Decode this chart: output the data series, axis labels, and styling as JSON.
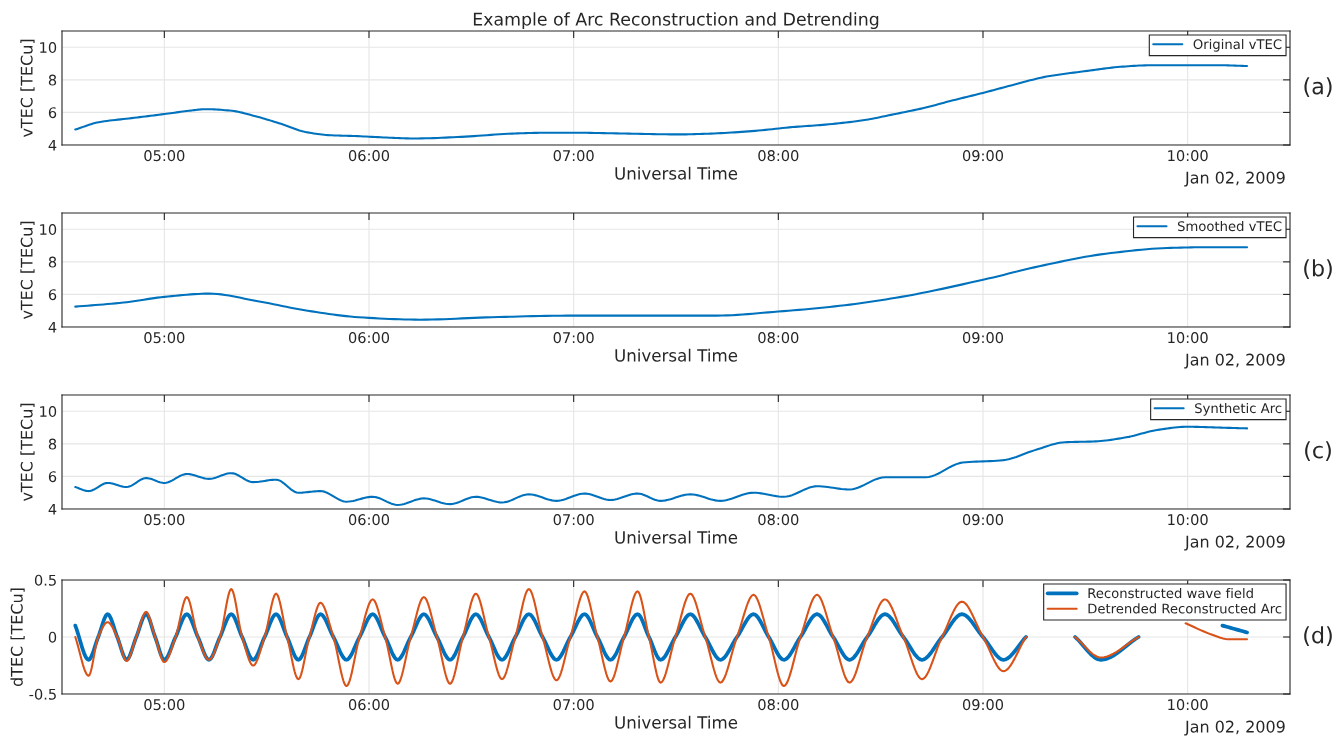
{
  "chart_data": [
    {
      "type": "line",
      "title": "Example of Arc Reconstruction and Detrending",
      "xlabel": "Universal Time",
      "ylabel": "vTEC [TECu]",
      "xlim": [
        4.5,
        10.5
      ],
      "ylim": [
        4,
        11
      ],
      "yticks": [
        4,
        6,
        8,
        10
      ],
      "xticks": [
        {
          "value": 5,
          "label": "05:00"
        },
        {
          "value": 6,
          "label": "06:00"
        },
        {
          "value": 7,
          "label": "07:00"
        },
        {
          "value": 8,
          "label": "08:00"
        },
        {
          "value": 9,
          "label": "09:00"
        },
        {
          "value": 10,
          "label": "10:00"
        }
      ],
      "grid": true,
      "legend": "top right",
      "annotations": [
        "Jan 02, 2009",
        "(a)"
      ],
      "series": [
        {
          "name": "Original vTEC",
          "color": "#0072bd",
          "x": [
            4.565,
            4.68,
            4.84,
            5.0,
            5.12,
            5.2,
            5.33,
            5.45,
            5.57,
            5.69,
            5.81,
            5.93,
            6.1,
            6.22,
            6.45,
            6.7,
            6.86,
            7.02,
            7.27,
            7.51,
            7.67,
            7.87,
            8.07,
            8.23,
            8.43,
            8.55,
            8.72,
            8.84,
            9.0,
            9.15,
            9.31,
            9.51,
            9.67,
            9.83,
            9.99,
            10.15,
            10.29
          ],
          "values": [
            4.95,
            5.4,
            5.65,
            5.9,
            6.1,
            6.2,
            6.1,
            5.75,
            5.3,
            4.8,
            4.6,
            4.55,
            4.45,
            4.4,
            4.5,
            4.7,
            4.75,
            4.75,
            4.7,
            4.65,
            4.7,
            4.85,
            5.1,
            5.25,
            5.55,
            5.85,
            6.3,
            6.7,
            7.2,
            7.7,
            8.2,
            8.55,
            8.8,
            8.9,
            8.9,
            8.9,
            8.85
          ]
        }
      ]
    },
    {
      "type": "line",
      "xlabel": "Universal Time",
      "ylabel": "vTEC [TECu]",
      "xlim": [
        4.5,
        10.5
      ],
      "ylim": [
        4,
        11
      ],
      "yticks": [
        4,
        6,
        8,
        10
      ],
      "xticks": [
        {
          "value": 5,
          "label": "05:00"
        },
        {
          "value": 6,
          "label": "06:00"
        },
        {
          "value": 7,
          "label": "07:00"
        },
        {
          "value": 8,
          "label": "08:00"
        },
        {
          "value": 9,
          "label": "09:00"
        },
        {
          "value": 10,
          "label": "10:00"
        }
      ],
      "grid": true,
      "legend": "top right",
      "annotations": [
        "Jan 02, 2009",
        "(b)"
      ],
      "series": [
        {
          "name": "Smoothed vTEC",
          "color": "#0072bd",
          "x": [
            4.565,
            4.8,
            5.0,
            5.22,
            5.45,
            5.7,
            5.95,
            6.25,
            6.6,
            7.0,
            7.4,
            7.7,
            8.0,
            8.3,
            8.6,
            9.0,
            9.3,
            9.6,
            9.9,
            10.1,
            10.29
          ],
          "values": [
            5.25,
            5.5,
            5.85,
            6.05,
            5.6,
            5.0,
            4.6,
            4.45,
            4.6,
            4.7,
            4.7,
            4.7,
            4.95,
            5.3,
            5.85,
            6.9,
            7.8,
            8.5,
            8.85,
            8.9,
            8.9
          ]
        }
      ]
    },
    {
      "type": "line",
      "xlabel": "Universal Time",
      "ylabel": "vTEC [TECu]",
      "xlim": [
        4.5,
        10.5
      ],
      "ylim": [
        4,
        11
      ],
      "yticks": [
        4,
        6,
        8,
        10
      ],
      "xticks": [
        {
          "value": 5,
          "label": "05:00"
        },
        {
          "value": 6,
          "label": "06:00"
        },
        {
          "value": 7,
          "label": "07:00"
        },
        {
          "value": 8,
          "label": "08:00"
        },
        {
          "value": 9,
          "label": "09:00"
        },
        {
          "value": 10,
          "label": "10:00"
        }
      ],
      "grid": true,
      "legend": "top right",
      "annotations": [
        "Jan 02, 2009",
        "(c)"
      ],
      "series": [
        {
          "name": "Synthetic Arc",
          "color": "#0072bd",
          "x": [
            4.565,
            4.63,
            4.723,
            4.816,
            4.911,
            5.0,
            5.11,
            5.218,
            5.327,
            5.434,
            5.546,
            5.655,
            5.763,
            5.89,
            6.018,
            6.14,
            6.268,
            6.396,
            6.522,
            6.65,
            6.781,
            6.916,
            7.053,
            7.18,
            7.312,
            7.425,
            7.57,
            7.717,
            7.879,
            8.027,
            8.189,
            8.348,
            8.521,
            8.72,
            8.9,
            9.1,
            9.25,
            9.4,
            9.55,
            9.7,
            9.85,
            10.0,
            10.15,
            10.29
          ],
          "values": [
            5.35,
            5.1,
            5.6,
            5.35,
            5.9,
            5.6,
            6.15,
            5.85,
            6.2,
            5.65,
            5.8,
            5.0,
            5.1,
            4.45,
            4.75,
            4.25,
            4.65,
            4.3,
            4.75,
            4.4,
            4.9,
            4.5,
            4.95,
            4.55,
            4.95,
            4.5,
            4.9,
            4.5,
            5.0,
            4.75,
            5.4,
            5.2,
            5.95,
            5.95,
            6.85,
            7.0,
            7.6,
            8.1,
            8.15,
            8.4,
            8.85,
            9.05,
            9.0,
            8.95
          ]
        }
      ]
    },
    {
      "type": "line",
      "xlabel": "Universal Time",
      "ylabel": "dTEC [TECu]",
      "xlim": [
        4.5,
        10.5
      ],
      "ylim": [
        -0.5,
        0.5
      ],
      "yticks": [
        -0.5,
        0,
        0.5
      ],
      "xticks": [
        {
          "value": 5,
          "label": "05:00"
        },
        {
          "value": 6,
          "label": "06:00"
        },
        {
          "value": 7,
          "label": "07:00"
        },
        {
          "value": 8,
          "label": "08:00"
        },
        {
          "value": 9,
          "label": "09:00"
        },
        {
          "value": 10,
          "label": "10:00"
        }
      ],
      "grid": true,
      "legend": "top right",
      "annotations": [
        "Jan 02, 2009",
        "(d)"
      ],
      "series": [
        {
          "name": "Reconstructed wave field",
          "color": "#0072bd",
          "x": [
            4.565,
            4.63,
            4.677,
            4.723,
            4.77,
            4.816,
            4.863,
            4.911,
            4.955,
            5.0,
            5.055,
            5.11,
            5.164,
            5.218,
            5.272,
            5.327,
            5.38,
            5.434,
            5.49,
            5.546,
            5.6,
            5.655,
            5.709,
            5.763,
            5.826,
            5.89,
            5.954,
            6.018,
            6.079,
            6.14,
            6.204,
            6.268,
            6.332,
            6.396,
            6.459,
            6.522,
            6.586,
            6.65,
            6.715,
            6.781,
            6.848,
            6.916,
            6.984,
            7.053,
            7.116,
            7.18,
            7.246,
            7.312,
            7.368,
            7.425,
            7.497,
            7.57,
            7.643,
            7.717,
            7.798,
            7.879,
            7.953,
            8.027,
            8.108,
            8.189,
            8.268,
            8.348,
            8.434,
            8.521,
            8.611,
            8.702,
            8.8,
            8.897,
            9.0,
            9.1,
            9.21,
            9.32,
            9.45,
            9.576,
            9.76,
            9.95,
            10.17,
            10.29
          ],
          "values": [
            0.1,
            -0.2,
            0,
            0.2,
            0,
            -0.2,
            0,
            0.2,
            0,
            -0.2,
            0,
            0.2,
            0,
            -0.2,
            0,
            0.2,
            0,
            -0.2,
            0,
            0.2,
            0,
            -0.2,
            0,
            0.2,
            0,
            -0.2,
            0,
            0.2,
            0,
            -0.2,
            0,
            0.2,
            0,
            -0.2,
            0,
            0.2,
            0,
            -0.2,
            0,
            0.2,
            0,
            -0.2,
            0,
            0.2,
            0,
            -0.2,
            0,
            0.2,
            0,
            -0.2,
            0,
            0.2,
            0,
            -0.2,
            0,
            0.2,
            0,
            -0.2,
            0,
            0.2,
            0,
            -0.2,
            0,
            0.2,
            0,
            -0.2,
            0,
            0.2,
            0,
            -0.2,
            0,
            null,
            0,
            -0.2,
            0,
            null,
            0.1,
            0.04
          ]
        },
        {
          "name": "Detrended Reconstructed Arc",
          "color": "#d95319",
          "x": [
            4.565,
            4.63,
            4.677,
            4.723,
            4.77,
            4.816,
            4.863,
            4.911,
            4.955,
            5.0,
            5.055,
            5.11,
            5.164,
            5.218,
            5.272,
            5.327,
            5.38,
            5.434,
            5.49,
            5.546,
            5.6,
            5.655,
            5.709,
            5.763,
            5.826,
            5.89,
            5.954,
            6.018,
            6.079,
            6.14,
            6.204,
            6.268,
            6.332,
            6.396,
            6.459,
            6.522,
            6.586,
            6.65,
            6.715,
            6.781,
            6.848,
            6.916,
            6.984,
            7.053,
            7.116,
            7.18,
            7.246,
            7.312,
            7.368,
            7.425,
            7.497,
            7.57,
            7.643,
            7.717,
            7.798,
            7.879,
            7.953,
            8.027,
            8.108,
            8.189,
            8.268,
            8.348,
            8.434,
            8.521,
            8.611,
            8.702,
            8.8,
            8.897,
            9.0,
            9.1,
            9.21,
            9.32,
            9.45,
            9.576,
            9.76,
            9.9,
            9.99,
            10.12,
            10.2,
            10.29
          ],
          "values": [
            0,
            -0.34,
            0,
            0.13,
            0,
            -0.21,
            0,
            0.22,
            0,
            -0.22,
            0,
            0.35,
            0,
            -0.2,
            0,
            0.42,
            0,
            -0.25,
            0,
            0.38,
            0,
            -0.37,
            0,
            0.3,
            0,
            -0.43,
            0,
            0.33,
            0,
            -0.41,
            0,
            0.35,
            0,
            -0.41,
            0,
            0.38,
            0,
            -0.37,
            0,
            0.42,
            0,
            -0.38,
            0,
            0.4,
            0,
            -0.39,
            0,
            0.4,
            0,
            -0.4,
            0,
            0.38,
            0,
            -0.4,
            0,
            0.37,
            0,
            -0.43,
            0,
            0.37,
            0,
            -0.4,
            0,
            0.33,
            0,
            -0.37,
            0,
            0.31,
            0,
            -0.3,
            0,
            null,
            0,
            -0.18,
            0,
            null,
            0.12,
            0.02,
            -0.02,
            -0.02
          ]
        }
      ]
    }
  ]
}
